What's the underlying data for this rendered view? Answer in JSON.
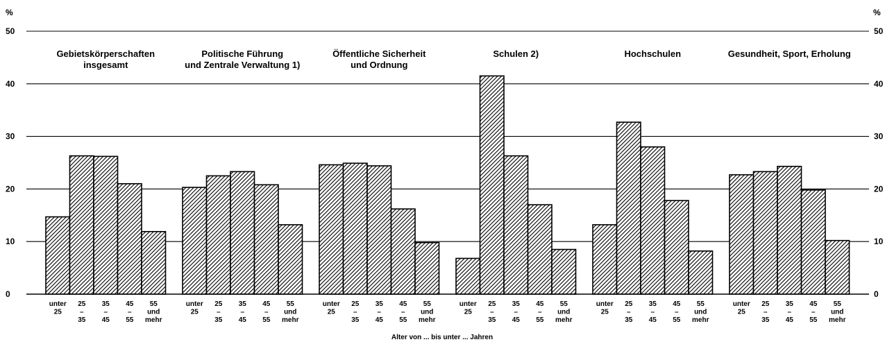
{
  "chart_data": {
    "type": "bar",
    "unit_label": "%",
    "xlabel": "Alter von ... bis unter ... Jahren",
    "ylim": [
      0,
      50
    ],
    "yticks": [
      0,
      10,
      20,
      30,
      40,
      50
    ],
    "grid": true,
    "categories": [
      [
        "unter",
        "25"
      ],
      [
        "25",
        "–",
        "35"
      ],
      [
        "35",
        "–",
        "45"
      ],
      [
        "45",
        "–",
        "55"
      ],
      [
        "55",
        "und",
        "mehr"
      ]
    ],
    "groups": [
      {
        "title": [
          "Gebietskörperschaften",
          "insgesamt"
        ],
        "values": [
          14.7,
          26.3,
          26.2,
          21.0,
          11.9
        ]
      },
      {
        "title": [
          "Politische Führung",
          "und Zentrale Verwaltung 1)"
        ],
        "values": [
          20.3,
          22.5,
          23.3,
          20.8,
          13.2
        ]
      },
      {
        "title": [
          "Öffentliche Sicherheit",
          "und Ordnung"
        ],
        "values": [
          24.6,
          24.9,
          24.4,
          16.2,
          9.8
        ]
      },
      {
        "title": [
          "Schulen 2)"
        ],
        "values": [
          6.8,
          41.5,
          26.3,
          17.0,
          8.5
        ]
      },
      {
        "title": [
          "Hochschulen"
        ],
        "values": [
          13.2,
          32.7,
          28.0,
          17.8,
          8.2
        ]
      },
      {
        "title": [
          "Gesundheit, Sport, Erholung"
        ],
        "values": [
          22.7,
          23.3,
          24.3,
          19.8,
          10.2
        ]
      }
    ]
  }
}
